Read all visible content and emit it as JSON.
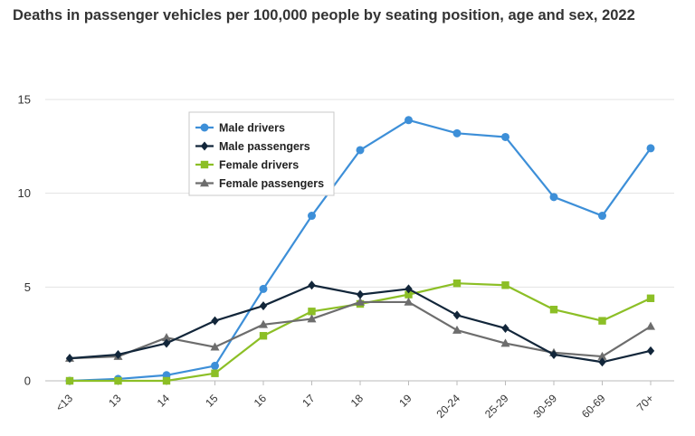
{
  "chart_data": {
    "type": "line",
    "title": "Deaths in passenger vehicles per 100,000 people by seating position, age and sex, 2022",
    "xlabel": "",
    "ylabel": "",
    "categories": [
      "<13",
      "13",
      "14",
      "15",
      "16",
      "17",
      "18",
      "19",
      "20-24",
      "25-29",
      "30-59",
      "60-69",
      "70+"
    ],
    "ylim": [
      0,
      15
    ],
    "yticks": [
      0,
      5,
      10,
      15
    ],
    "grid": true,
    "legend_position": "top-left",
    "series": [
      {
        "name": "Male drivers",
        "color": "#3d8fd8",
        "marker": "circle",
        "values": [
          0.0,
          0.1,
          0.3,
          0.8,
          4.9,
          8.8,
          12.3,
          13.9,
          13.2,
          13.0,
          9.8,
          8.8,
          12.4
        ]
      },
      {
        "name": "Male passengers",
        "color": "#12263a",
        "marker": "diamond",
        "values": [
          1.2,
          1.4,
          2.0,
          3.2,
          4.0,
          5.1,
          4.6,
          4.9,
          3.5,
          2.8,
          1.4,
          1.0,
          1.6
        ]
      },
      {
        "name": "Female drivers",
        "color": "#8cbf26",
        "marker": "square",
        "values": [
          0.0,
          0.0,
          0.0,
          0.4,
          2.4,
          3.7,
          4.1,
          4.6,
          5.2,
          5.1,
          3.8,
          3.2,
          4.4
        ]
      },
      {
        "name": "Female passengers",
        "color": "#6d6d6d",
        "marker": "triangle",
        "values": [
          1.2,
          1.3,
          2.3,
          1.8,
          3.0,
          3.3,
          4.2,
          4.2,
          2.7,
          2.0,
          1.5,
          1.3,
          2.9
        ]
      }
    ]
  }
}
